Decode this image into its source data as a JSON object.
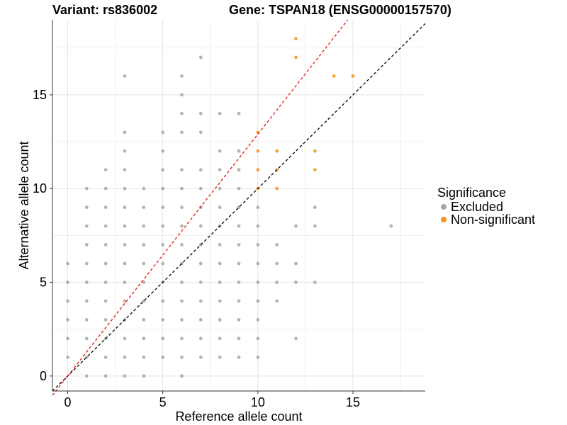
{
  "title": {
    "variant": "Variant: rs836002",
    "gene": "Gene: TSPAN18 (ENSG00000157570)"
  },
  "chart_data": {
    "type": "scatter",
    "xlabel": "Reference allele count",
    "ylabel": "Alternative allele count",
    "xlim": [
      -0.8,
      18.8
    ],
    "ylim": [
      -0.8,
      19.0
    ],
    "x_ticks": [
      0,
      5,
      10,
      15
    ],
    "y_ticks": [
      0,
      5,
      10,
      15
    ],
    "grid": true,
    "legend": {
      "title": "Significance",
      "position": "right",
      "entries": [
        {
          "label": "Excluded",
          "color": "#a6a6a6"
        },
        {
          "label": "Non-significant",
          "color": "#f5931e"
        }
      ]
    },
    "reference_lines": [
      {
        "slope": 1.0,
        "intercept": 0,
        "color": "#000000",
        "style": "dashed"
      },
      {
        "slope": 1.29,
        "intercept": 0,
        "color": "#e8150b",
        "style": "dashed"
      }
    ],
    "series": [
      {
        "name": "Excluded",
        "color": "#a6a6a6",
        "points": [
          [
            0,
            6
          ],
          [
            0,
            5
          ],
          [
            0,
            4
          ],
          [
            0,
            3
          ],
          [
            0,
            2
          ],
          [
            0,
            1
          ],
          [
            1,
            10
          ],
          [
            1,
            9
          ],
          [
            1,
            8
          ],
          [
            1,
            7
          ],
          [
            1,
            6
          ],
          [
            1,
            5
          ],
          [
            1,
            4
          ],
          [
            1,
            3
          ],
          [
            1,
            2
          ],
          [
            1,
            1
          ],
          [
            1,
            0
          ],
          [
            2,
            11
          ],
          [
            2,
            10
          ],
          [
            2,
            9
          ],
          [
            2,
            8
          ],
          [
            2,
            7
          ],
          [
            2,
            6
          ],
          [
            2,
            5
          ],
          [
            2,
            4
          ],
          [
            2,
            3
          ],
          [
            2,
            2
          ],
          [
            2,
            1
          ],
          [
            2,
            0
          ],
          [
            3,
            16
          ],
          [
            3,
            13
          ],
          [
            3,
            12
          ],
          [
            3,
            11
          ],
          [
            3,
            10
          ],
          [
            3,
            9
          ],
          [
            3,
            8
          ],
          [
            3,
            7
          ],
          [
            3,
            6
          ],
          [
            3,
            5
          ],
          [
            3,
            4
          ],
          [
            3,
            3
          ],
          [
            3,
            2
          ],
          [
            3,
            1
          ],
          [
            3,
            0
          ],
          [
            4,
            10
          ],
          [
            4,
            9
          ],
          [
            4,
            8
          ],
          [
            4,
            7
          ],
          [
            4,
            6
          ],
          [
            4,
            5
          ],
          [
            4,
            4
          ],
          [
            4,
            3
          ],
          [
            4,
            2
          ],
          [
            4,
            1
          ],
          [
            4,
            0
          ],
          [
            5,
            13
          ],
          [
            5,
            12
          ],
          [
            5,
            11
          ],
          [
            5,
            10
          ],
          [
            5,
            9
          ],
          [
            5,
            8
          ],
          [
            5,
            7
          ],
          [
            5,
            6
          ],
          [
            5,
            5
          ],
          [
            5,
            4
          ],
          [
            5,
            3
          ],
          [
            5,
            2
          ],
          [
            5,
            1
          ],
          [
            6,
            16
          ],
          [
            6,
            15
          ],
          [
            6,
            14
          ],
          [
            6,
            13
          ],
          [
            6,
            11
          ],
          [
            6,
            10
          ],
          [
            6,
            9
          ],
          [
            6,
            8
          ],
          [
            6,
            7
          ],
          [
            6,
            6
          ],
          [
            6,
            5
          ],
          [
            6,
            4
          ],
          [
            6,
            3
          ],
          [
            6,
            2
          ],
          [
            6,
            1
          ],
          [
            6,
            0
          ],
          [
            7,
            17
          ],
          [
            7,
            14
          ],
          [
            7,
            13
          ],
          [
            7,
            11
          ],
          [
            7,
            10
          ],
          [
            7,
            9
          ],
          [
            7,
            8
          ],
          [
            7,
            7
          ],
          [
            7,
            6
          ],
          [
            7,
            5
          ],
          [
            7,
            4
          ],
          [
            7,
            3
          ],
          [
            7,
            2
          ],
          [
            7,
            1
          ],
          [
            8,
            14
          ],
          [
            8,
            12
          ],
          [
            8,
            11
          ],
          [
            8,
            10
          ],
          [
            8,
            9
          ],
          [
            8,
            8
          ],
          [
            8,
            7
          ],
          [
            8,
            6
          ],
          [
            8,
            5
          ],
          [
            8,
            4
          ],
          [
            8,
            3
          ],
          [
            8,
            2
          ],
          [
            8,
            1
          ],
          [
            9,
            14
          ],
          [
            9,
            12
          ],
          [
            9,
            11
          ],
          [
            9,
            10
          ],
          [
            9,
            9
          ],
          [
            9,
            8
          ],
          [
            9,
            7
          ],
          [
            9,
            6
          ],
          [
            9,
            5
          ],
          [
            9,
            4
          ],
          [
            9,
            3
          ],
          [
            9,
            2
          ],
          [
            9,
            1
          ],
          [
            10,
            9
          ],
          [
            10,
            8
          ],
          [
            10,
            7
          ],
          [
            10,
            6
          ],
          [
            10,
            5
          ],
          [
            10,
            4
          ],
          [
            10,
            3
          ],
          [
            10,
            2
          ],
          [
            10,
            1
          ],
          [
            11,
            7
          ],
          [
            11,
            6
          ],
          [
            11,
            5
          ],
          [
            11,
            4
          ],
          [
            12,
            8
          ],
          [
            12,
            6
          ],
          [
            12,
            5
          ],
          [
            12,
            2
          ],
          [
            13,
            9
          ],
          [
            13,
            8
          ],
          [
            13,
            5
          ],
          [
            17,
            8
          ]
        ]
      },
      {
        "name": "Non-significant",
        "color": "#f5931e",
        "points": [
          [
            10,
            13
          ],
          [
            10,
            12
          ],
          [
            10,
            11
          ],
          [
            10,
            10
          ],
          [
            11,
            12
          ],
          [
            11,
            11
          ],
          [
            11,
            10
          ],
          [
            12,
            18
          ],
          [
            12,
            17
          ],
          [
            13,
            12
          ],
          [
            13,
            11
          ],
          [
            14,
            16
          ],
          [
            15,
            16
          ]
        ]
      }
    ]
  }
}
